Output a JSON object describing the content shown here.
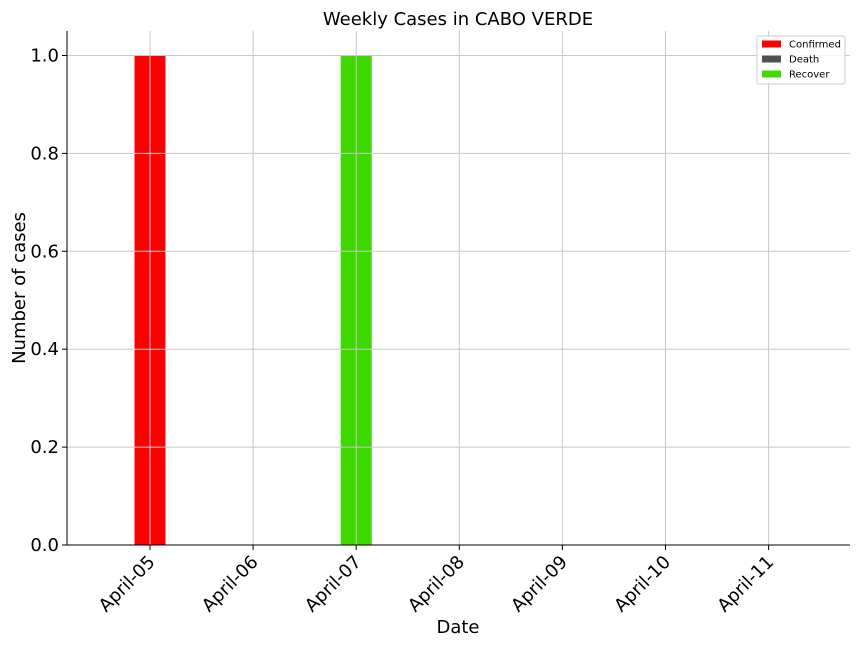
{
  "chart_data": {
    "type": "bar",
    "title": "Weekly Cases in CABO VERDE",
    "xlabel": "Date",
    "ylabel": "Number of cases",
    "categories": [
      "April-05",
      "April-06",
      "April-07",
      "April-08",
      "April-09",
      "April-10",
      "April-11"
    ],
    "series": [
      {
        "name": "Confirmed",
        "color": "#ff0000",
        "values": [
          1,
          0,
          0,
          0,
          0,
          0,
          0
        ]
      },
      {
        "name": "Death",
        "color": "#505050",
        "values": [
          0,
          0,
          0,
          0,
          0,
          0,
          0
        ]
      },
      {
        "name": "Recover",
        "color": "#3fd800",
        "values": [
          0,
          0,
          1,
          0,
          0,
          0,
          0
        ]
      }
    ],
    "ylim": [
      0,
      1.05
    ],
    "yticks": [
      "0.0",
      "0.2",
      "0.4",
      "0.6",
      "0.8",
      "1.0"
    ],
    "ytick_values": [
      0,
      0.2,
      0.4,
      0.6,
      0.8,
      1.0
    ],
    "grid": true,
    "legend_position": "top-right"
  }
}
